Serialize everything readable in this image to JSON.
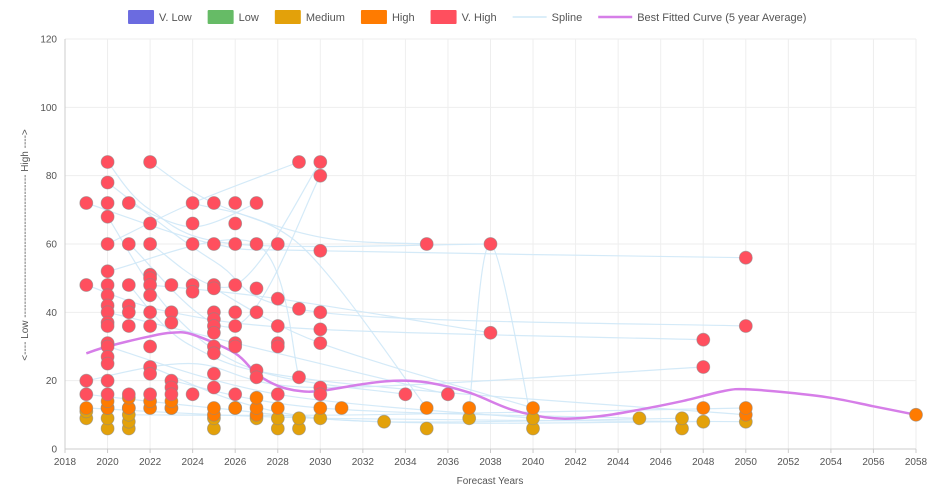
{
  "chart_data": {
    "type": "scatter",
    "xlabel": "Forecast Years",
    "ylabel": "<---- Low ------------------------------------------- High ---->",
    "xlim": [
      2018,
      2058
    ],
    "ylim": [
      0,
      120
    ],
    "x_ticks": [
      "2018",
      "2020",
      "2022",
      "2024",
      "2026",
      "2028",
      "2030",
      "2032",
      "2034",
      "2036",
      "2038",
      "2040",
      "2042",
      "2044",
      "2046",
      "2048",
      "2050",
      "2052",
      "2054",
      "2056",
      "2058"
    ],
    "y_ticks": [
      "0",
      "20",
      "40",
      "60",
      "80",
      "100",
      "120"
    ],
    "grid": true,
    "legend": {
      "position": "top-center",
      "items": [
        {
          "label": "V. Low",
          "color": "#6b6be0",
          "kind": "box"
        },
        {
          "label": "Low",
          "color": "#66bb66",
          "kind": "box"
        },
        {
          "label": "Medium",
          "color": "#e3a10a",
          "kind": "box"
        },
        {
          "label": "High",
          "color": "#ff7b00",
          "kind": "box"
        },
        {
          "label": "V. High",
          "color": "#ff4f5e",
          "kind": "box"
        },
        {
          "label": "Spline",
          "color": "#cfe8f7",
          "kind": "line"
        },
        {
          "label": "Best Fitted Curve (5 year Average)",
          "color": "#d67ee8",
          "kind": "line"
        }
      ]
    },
    "series": [
      {
        "name": "Medium",
        "color": "#e3a10a",
        "points": [
          [
            2019,
            9
          ],
          [
            2019,
            11
          ],
          [
            2020,
            6
          ],
          [
            2020,
            9
          ],
          [
            2020,
            12
          ],
          [
            2021,
            6
          ],
          [
            2021,
            8
          ],
          [
            2021,
            10
          ],
          [
            2021,
            12
          ],
          [
            2023,
            12
          ],
          [
            2025,
            6
          ],
          [
            2025,
            9
          ],
          [
            2026,
            12
          ],
          [
            2027,
            9
          ],
          [
            2028,
            6
          ],
          [
            2028,
            9
          ],
          [
            2029,
            6
          ],
          [
            2029,
            9
          ],
          [
            2030,
            9
          ],
          [
            2033,
            8
          ],
          [
            2035,
            6
          ],
          [
            2037,
            9
          ],
          [
            2040,
            6
          ],
          [
            2040,
            9
          ],
          [
            2045,
            9
          ],
          [
            2047,
            6
          ],
          [
            2047,
            9
          ],
          [
            2048,
            8
          ],
          [
            2050,
            8
          ]
        ]
      },
      {
        "name": "High",
        "color": "#ff7b00",
        "points": [
          [
            2019,
            12
          ],
          [
            2020,
            12
          ],
          [
            2020,
            14
          ],
          [
            2021,
            12
          ],
          [
            2021,
            15
          ],
          [
            2022,
            12
          ],
          [
            2022,
            14
          ],
          [
            2023,
            12
          ],
          [
            2023,
            14
          ],
          [
            2025,
            10
          ],
          [
            2025,
            12
          ],
          [
            2026,
            12
          ],
          [
            2027,
            10
          ],
          [
            2027,
            12
          ],
          [
            2027,
            15
          ],
          [
            2028,
            12
          ],
          [
            2030,
            12
          ],
          [
            2031,
            12
          ],
          [
            2035,
            12
          ],
          [
            2037,
            12
          ],
          [
            2040,
            12
          ],
          [
            2048,
            12
          ],
          [
            2050,
            10
          ],
          [
            2050,
            12
          ],
          [
            2058,
            10
          ]
        ]
      },
      {
        "name": "V. High",
        "color": "#ff4f5e",
        "points": [
          [
            2019,
            72
          ],
          [
            2019,
            48
          ],
          [
            2019,
            20
          ],
          [
            2019,
            16
          ],
          [
            2020,
            84
          ],
          [
            2020,
            78
          ],
          [
            2020,
            72
          ],
          [
            2020,
            68
          ],
          [
            2020,
            60
          ],
          [
            2020,
            52
          ],
          [
            2020,
            48
          ],
          [
            2020,
            45
          ],
          [
            2020,
            42
          ],
          [
            2020,
            40
          ],
          [
            2020,
            37
          ],
          [
            2020,
            36
          ],
          [
            2020,
            31
          ],
          [
            2020,
            30
          ],
          [
            2020,
            27
          ],
          [
            2020,
            25
          ],
          [
            2020,
            20
          ],
          [
            2020,
            16
          ],
          [
            2021,
            72
          ],
          [
            2021,
            60
          ],
          [
            2021,
            48
          ],
          [
            2021,
            42
          ],
          [
            2021,
            40
          ],
          [
            2021,
            36
          ],
          [
            2021,
            16
          ],
          [
            2022,
            84
          ],
          [
            2022,
            66
          ],
          [
            2022,
            60
          ],
          [
            2022,
            51
          ],
          [
            2022,
            50
          ],
          [
            2022,
            48
          ],
          [
            2022,
            45
          ],
          [
            2022,
            40
          ],
          [
            2022,
            36
          ],
          [
            2022,
            30
          ],
          [
            2022,
            24
          ],
          [
            2022,
            22
          ],
          [
            2022,
            16
          ],
          [
            2023,
            48
          ],
          [
            2023,
            40
          ],
          [
            2023,
            37
          ],
          [
            2023,
            20
          ],
          [
            2023,
            18
          ],
          [
            2023,
            16
          ],
          [
            2024,
            72
          ],
          [
            2024,
            66
          ],
          [
            2024,
            60
          ],
          [
            2024,
            48
          ],
          [
            2024,
            46
          ],
          [
            2024,
            16
          ],
          [
            2025,
            72
          ],
          [
            2025,
            60
          ],
          [
            2025,
            48
          ],
          [
            2025,
            47
          ],
          [
            2025,
            40
          ],
          [
            2025,
            38
          ],
          [
            2025,
            36
          ],
          [
            2025,
            34
          ],
          [
            2025,
            30
          ],
          [
            2025,
            28
          ],
          [
            2025,
            22
          ],
          [
            2025,
            18
          ],
          [
            2026,
            72
          ],
          [
            2026,
            66
          ],
          [
            2026,
            60
          ],
          [
            2026,
            48
          ],
          [
            2026,
            40
          ],
          [
            2026,
            36
          ],
          [
            2026,
            31
          ],
          [
            2026,
            30
          ],
          [
            2026,
            16
          ],
          [
            2027,
            72
          ],
          [
            2027,
            60
          ],
          [
            2027,
            47
          ],
          [
            2027,
            40
          ],
          [
            2027,
            23
          ],
          [
            2027,
            21
          ],
          [
            2028,
            60
          ],
          [
            2028,
            44
          ],
          [
            2028,
            36
          ],
          [
            2028,
            31
          ],
          [
            2028,
            30
          ],
          [
            2028,
            16
          ],
          [
            2029,
            84
          ],
          [
            2029,
            41
          ],
          [
            2029,
            21
          ],
          [
            2030,
            84
          ],
          [
            2030,
            80
          ],
          [
            2030,
            58
          ],
          [
            2030,
            40
          ],
          [
            2030,
            35
          ],
          [
            2030,
            31
          ],
          [
            2030,
            18
          ],
          [
            2030,
            16
          ],
          [
            2034,
            16
          ],
          [
            2035,
            60
          ],
          [
            2036,
            16
          ],
          [
            2038,
            60
          ],
          [
            2038,
            34
          ],
          [
            2048,
            32
          ],
          [
            2048,
            24
          ],
          [
            2050,
            56
          ],
          [
            2050,
            36
          ]
        ]
      },
      {
        "name": "Best Fitted Curve (5 year Average)",
        "color": "#d67ee8",
        "points": [
          [
            2019,
            28
          ],
          [
            2020,
            30
          ],
          [
            2022,
            33
          ],
          [
            2023,
            34
          ],
          [
            2024,
            33.5
          ],
          [
            2026,
            28
          ],
          [
            2027,
            22
          ],
          [
            2028,
            18.5
          ],
          [
            2029,
            17
          ],
          [
            2030,
            17
          ],
          [
            2032,
            19
          ],
          [
            2033.5,
            20
          ],
          [
            2035,
            19.5
          ],
          [
            2037,
            16.5
          ],
          [
            2039,
            11.5
          ],
          [
            2041,
            9
          ],
          [
            2043,
            9.5
          ],
          [
            2045,
            11.5
          ],
          [
            2047,
            14
          ],
          [
            2049,
            17
          ],
          [
            2050,
            17.5
          ],
          [
            2052,
            16.5
          ],
          [
            2054,
            15
          ],
          [
            2056,
            12.5
          ],
          [
            2058,
            10
          ]
        ]
      }
    ],
    "splines": [
      [
        [
          2019,
          72
        ],
        [
          2025,
          60
        ],
        [
          2030,
          58
        ],
        [
          2050,
          56
        ]
      ],
      [
        [
          2020,
          84
        ],
        [
          2022,
          70
        ],
        [
          2026,
          60
        ],
        [
          2038,
          60
        ]
      ],
      [
        [
          2022,
          84
        ],
        [
          2025,
          72
        ],
        [
          2030,
          62
        ],
        [
          2035,
          60
        ]
      ],
      [
        [
          2019,
          48
        ],
        [
          2023,
          40
        ],
        [
          2030,
          35
        ],
        [
          2048,
          32
        ]
      ],
      [
        [
          2020,
          60
        ],
        [
          2024,
          72
        ],
        [
          2029,
          84
        ]
      ],
      [
        [
          2021,
          72
        ],
        [
          2024,
          65
        ],
        [
          2027,
          72
        ]
      ],
      [
        [
          2020,
          78
        ],
        [
          2025,
          55
        ],
        [
          2030,
          40
        ],
        [
          2050,
          36
        ]
      ],
      [
        [
          2019,
          20
        ],
        [
          2024,
          25
        ],
        [
          2030,
          18
        ],
        [
          2048,
          24
        ]
      ],
      [
        [
          2021,
          48
        ],
        [
          2024,
          30
        ],
        [
          2030,
          20
        ],
        [
          2050,
          10
        ]
      ],
      [
        [
          2020,
          68
        ],
        [
          2023,
          40
        ],
        [
          2027,
          23
        ],
        [
          2034,
          16
        ]
      ],
      [
        [
          2022,
          60
        ],
        [
          2026,
          48
        ],
        [
          2030,
          84
        ]
      ],
      [
        [
          2019,
          16
        ],
        [
          2025,
          12
        ],
        [
          2033,
          8
        ],
        [
          2047,
          9
        ]
      ],
      [
        [
          2020,
          40
        ],
        [
          2026,
          31
        ],
        [
          2036,
          16
        ]
      ],
      [
        [
          2022,
          48
        ],
        [
          2028,
          44
        ],
        [
          2038,
          34
        ]
      ],
      [
        [
          2025,
          47
        ],
        [
          2030,
          31
        ],
        [
          2040,
          12
        ]
      ],
      [
        [
          2020,
          30
        ],
        [
          2028,
          16
        ],
        [
          2040,
          9
        ]
      ],
      [
        [
          2024,
          72
        ],
        [
          2029,
          60
        ],
        [
          2035,
          12
        ]
      ],
      [
        [
          2023,
          20
        ],
        [
          2030,
          12
        ],
        [
          2045,
          9
        ]
      ],
      [
        [
          2021,
          60
        ],
        [
          2026,
          36
        ],
        [
          2030,
          80
        ]
      ],
      [
        [
          2020,
          52
        ],
        [
          2027,
          60
        ],
        [
          2029,
          21
        ]
      ],
      [
        [
          2019,
          12
        ],
        [
          2030,
          9
        ],
        [
          2050,
          8
        ]
      ],
      [
        [
          2022,
          24
        ],
        [
          2030,
          9
        ],
        [
          2048,
          8
        ]
      ],
      [
        [
          2021,
          10
        ],
        [
          2032,
          10
        ],
        [
          2050,
          12
        ]
      ],
      [
        [
          2037,
          12
        ],
        [
          2038,
          60
        ],
        [
          2040,
          6
        ]
      ]
    ]
  }
}
